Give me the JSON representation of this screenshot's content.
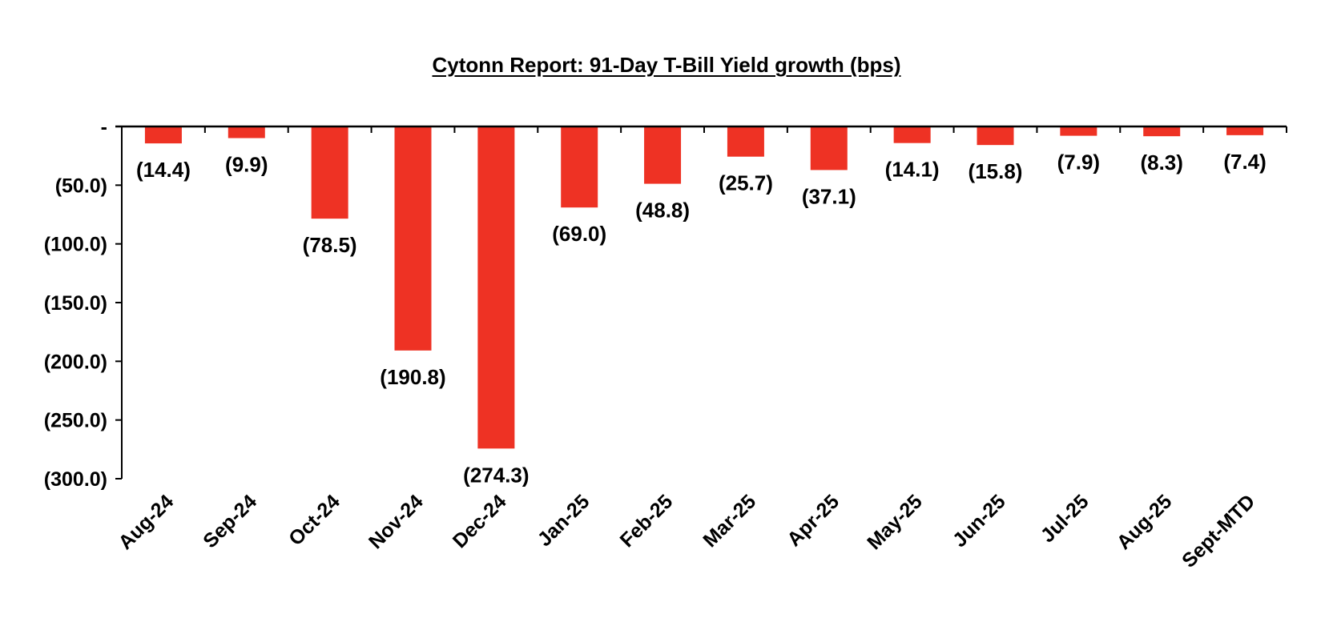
{
  "chart_data": {
    "type": "bar",
    "title": "Cytonn Report:  91-Day T-Bill Yield growth (bps)",
    "xlabel": "",
    "ylabel": "",
    "categories": [
      "Aug-24",
      "Sep-24",
      "Oct-24",
      "Nov-24",
      "Dec-24",
      "Jan-25",
      "Feb-25",
      "Mar-25",
      "Apr-25",
      "May-25",
      "Jun-25",
      "Jul-25",
      "Aug-25",
      "Sept-MTD"
    ],
    "values": [
      -14.4,
      -9.9,
      -78.5,
      -190.8,
      -274.3,
      -69.0,
      -48.8,
      -25.7,
      -37.1,
      -14.1,
      -15.8,
      -7.9,
      -8.3,
      -7.4
    ],
    "data_labels": [
      "(14.4)",
      "(9.9)",
      "(78.5)",
      "(190.8)",
      "(274.3)",
      "(69.0)",
      "(48.8)",
      "(25.7)",
      "(37.1)",
      "(14.1)",
      "(15.8)",
      "(7.9)",
      "(8.3)",
      "(7.4)"
    ],
    "ylim": [
      -300,
      0
    ],
    "yticks": [
      0,
      -50,
      -100,
      -150,
      -200,
      -250,
      -300
    ],
    "ytick_labels": [
      "-",
      "(50.0)",
      "(100.0)",
      "(150.0)",
      "(200.0)",
      "(250.0)",
      "(300.0)"
    ],
    "grid": false,
    "legend": "none",
    "bar_color": "#EE3224"
  }
}
